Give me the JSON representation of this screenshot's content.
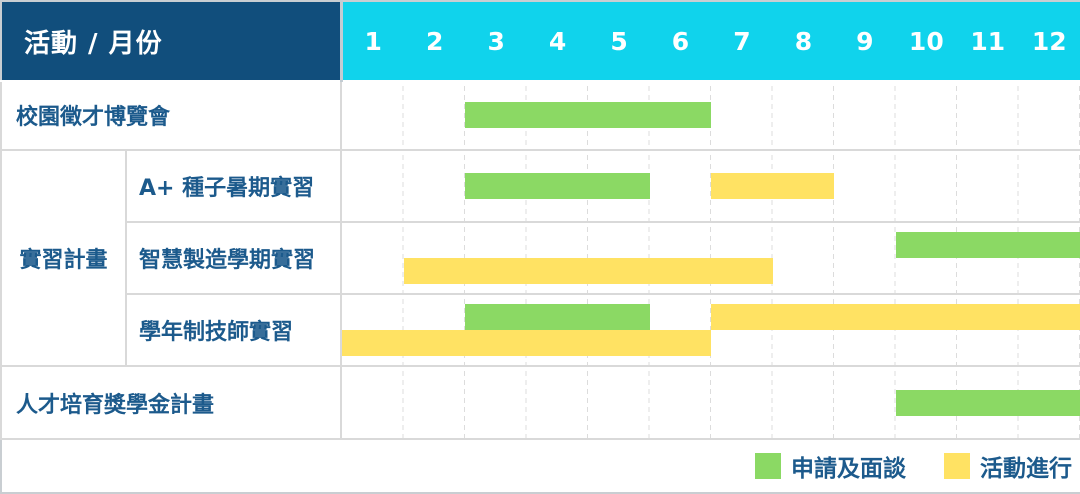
{
  "header": {
    "corner_label": "活動 / 月份",
    "months": [
      "1",
      "2",
      "3",
      "4",
      "5",
      "6",
      "7",
      "8",
      "9",
      "10",
      "11",
      "12"
    ]
  },
  "colors": {
    "header_bg": "#114e7c",
    "months_bg": "#10d3ec",
    "label_text": "#1c5a8c",
    "application_green": "#8bd964",
    "activity_yellow": "#ffe263"
  },
  "legend": {
    "items": [
      {
        "phase": "申請及面談",
        "color": "#8bd964"
      },
      {
        "phase": "活動進行",
        "color": "#ffe263"
      }
    ]
  },
  "chart_data": {
    "type": "gantt",
    "unit": "month",
    "x_range": [
      1,
      12
    ],
    "tasks": [
      {
        "name": "校園徵才博覽會",
        "group": null,
        "bars": [
          {
            "phase": "申請及面談",
            "start": 3,
            "end": 6,
            "track": "center"
          }
        ]
      },
      {
        "name": "A+ 種子暑期實習",
        "group": "實習計畫",
        "bars": [
          {
            "phase": "申請及面談",
            "start": 3,
            "end": 5,
            "track": "center"
          },
          {
            "phase": "活動進行",
            "start": 7,
            "end": 8,
            "track": "center"
          }
        ]
      },
      {
        "name": "智慧製造學期實習",
        "group": "實習計畫",
        "bars": [
          {
            "phase": "申請及面談",
            "start": 10,
            "end": 12,
            "track": "top"
          },
          {
            "phase": "活動進行",
            "start": 2,
            "end": 7,
            "track": "bottom"
          }
        ]
      },
      {
        "name": "學年制技師實習",
        "group": "實習計畫",
        "bars": [
          {
            "phase": "申請及面談",
            "start": 3,
            "end": 5,
            "track": "top"
          },
          {
            "phase": "活動進行",
            "start": 7,
            "end": 12,
            "track": "top"
          },
          {
            "phase": "活動進行",
            "start": 1,
            "end": 6,
            "track": "bottom"
          }
        ]
      },
      {
        "name": "人才培育獎學金計畫",
        "group": null,
        "bars": [
          {
            "phase": "申請及面談",
            "start": 10,
            "end": 12,
            "track": "center"
          }
        ]
      }
    ]
  }
}
